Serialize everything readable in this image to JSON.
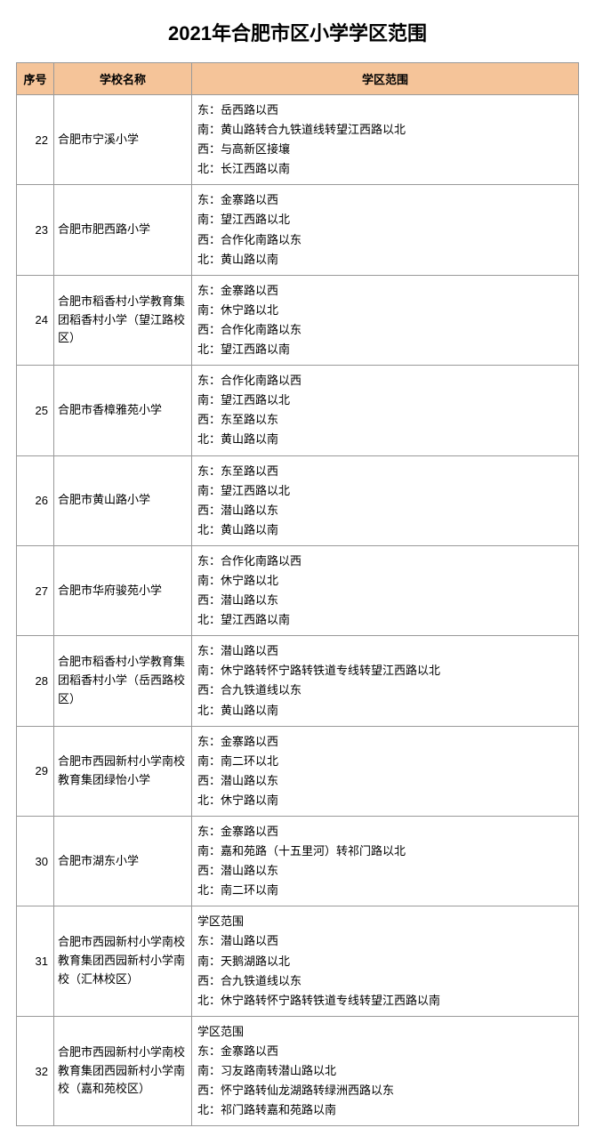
{
  "title": "2021年合肥市区小学学区范围",
  "columns": {
    "seq": "序号",
    "name": "学校名称",
    "scope": "学区范围"
  },
  "colors": {
    "header_bg": "#f5c499",
    "border": "#999999",
    "text": "#000000",
    "background": "#ffffff"
  },
  "rows": [
    {
      "seq": "22",
      "name": "合肥市宁溪小学",
      "scope": [
        "东：岳西路以西",
        "南：黄山路转合九铁道线转望江西路以北",
        "西：与高新区接壤",
        "北：长江西路以南"
      ]
    },
    {
      "seq": "23",
      "name": "合肥市肥西路小学",
      "scope": [
        "东：金寨路以西",
        "南：望江西路以北",
        "西：合作化南路以东",
        "北：黄山路以南"
      ]
    },
    {
      "seq": "24",
      "name": "合肥市稻香村小学教育集团稻香村小学（望江路校区）",
      "scope": [
        "东：金寨路以西",
        "南：休宁路以北",
        "西：合作化南路以东",
        "北：望江西路以南"
      ]
    },
    {
      "seq": "25",
      "name": "合肥市香樟雅苑小学",
      "scope": [
        "东：合作化南路以西",
        "南：望江西路以北",
        "西：东至路以东",
        "北：黄山路以南"
      ]
    },
    {
      "seq": "26",
      "name": "合肥市黄山路小学",
      "scope": [
        "东：东至路以西",
        "南：望江西路以北",
        "西：潜山路以东",
        "北：黄山路以南"
      ]
    },
    {
      "seq": "27",
      "name": "合肥市华府骏苑小学",
      "scope": [
        "东：合作化南路以西",
        "南：休宁路以北",
        "西：潜山路以东",
        "北：望江西路以南"
      ]
    },
    {
      "seq": "28",
      "name": "合肥市稻香村小学教育集团稻香村小学（岳西路校区）",
      "scope": [
        "东：潜山路以西",
        "南：休宁路转怀宁路转铁道专线转望江西路以北",
        "西：合九铁道线以东",
        "北：黄山路以南"
      ]
    },
    {
      "seq": "29",
      "name": "合肥市西园新村小学南校教育集团绿怡小学",
      "scope": [
        "东：金寨路以西",
        "南：南二环以北",
        "西：潜山路以东",
        "北：休宁路以南"
      ]
    },
    {
      "seq": "30",
      "name": "合肥市湖东小学",
      "scope": [
        "东：金寨路以西",
        "南：嘉和苑路（十五里河）转祁门路以北",
        "西：潜山路以东",
        "北：南二环以南"
      ]
    },
    {
      "seq": "31",
      "name": "合肥市西园新村小学南校教育集团西园新村小学南校（汇林校区）",
      "scope": [
        "学区范围",
        "东：潜山路以西",
        "南：天鹅湖路以北",
        "西：合九铁道线以东",
        "北：休宁路转怀宁路转铁道专线转望江西路以南"
      ]
    },
    {
      "seq": "32",
      "name": "合肥市西园新村小学南校教育集团西园新村小学南校（嘉和苑校区）",
      "scope": [
        "学区范围",
        "东：金寨路以西",
        "南：习友路南转潜山路以北",
        "西：怀宁路转仙龙湖路转绿洲西路以东",
        "北：祁门路转嘉和苑路以南"
      ]
    }
  ]
}
